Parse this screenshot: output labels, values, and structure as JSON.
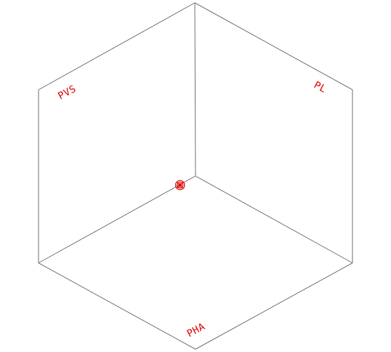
{
  "diagram": {
    "colors": {
      "edges": "#6e6e6e",
      "labels": "#e00000",
      "marker": "#e00000",
      "background": "#ffffff"
    },
    "labels": {
      "top_left": "PVS",
      "top_right": "PL",
      "bottom": "PHA"
    },
    "marker": {
      "name": "origin-marker"
    }
  }
}
